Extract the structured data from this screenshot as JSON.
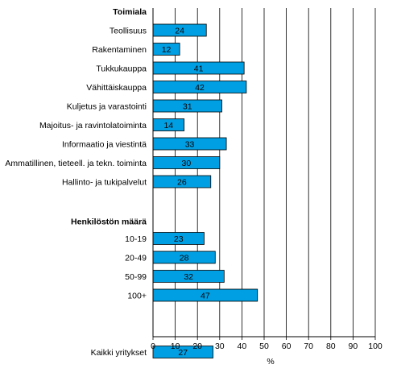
{
  "chart_data": {
    "type": "bar",
    "orientation": "horizontal",
    "groups": [
      {
        "label": "Toimiala",
        "categories": [
          "Teollisuus",
          "Rakentaminen",
          "Tukkukauppa",
          "Vähittäiskauppa",
          "Kuljetus ja varastointi",
          "Majoitus- ja ravintolatoiminta",
          "Informaatio ja viestintä",
          "Ammatillinen, tieteell. ja tekn. toiminta",
          "Hallinto- ja tukipalvelut"
        ],
        "values": [
          24,
          12,
          41,
          42,
          31,
          14,
          33,
          30,
          26
        ]
      },
      {
        "label": "Henkilöstön määrä",
        "categories": [
          "10-19",
          "20-49",
          "50-99",
          "100+"
        ],
        "values": [
          23,
          28,
          32,
          47
        ]
      },
      {
        "label": "",
        "categories": [
          "Kaikki yritykset"
        ],
        "values": [
          27
        ]
      }
    ],
    "xlabel": "%",
    "xlim": [
      0,
      100
    ],
    "xticks": [
      0,
      10,
      20,
      30,
      40,
      50,
      60,
      70,
      80,
      90,
      100
    ],
    "grid": "vertical",
    "bar_color": "#009fe3",
    "bar_edge_color": "#000000"
  }
}
